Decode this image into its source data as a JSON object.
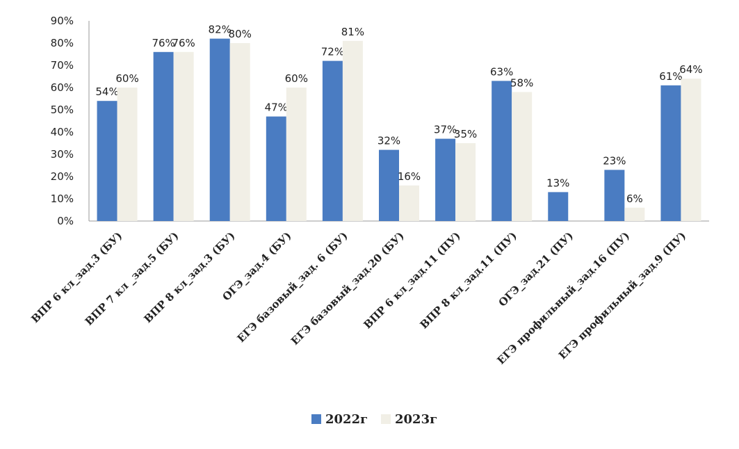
{
  "chart_data": {
    "type": "bar",
    "categories": [
      "ВПР 6 кл_зад.3 (БУ)",
      "ВПР 7 кл _зад.5 (БУ)",
      "ВПР 8 кл_зад.3 (БУ)",
      "ОГЭ_зад.4 (БУ)",
      "ЕГЭ базовый_зад. 6 (БУ)",
      "ЕГЭ базовый_зад.20 (БУ)",
      "ВПР 6 кл_зад.11 (ПУ)",
      "ВПР 8 кл_зад.11 (ПУ)",
      "ОГЭ_зад.21 (ПУ)",
      "ЕГЭ профильный_зад.16 (ПУ)",
      "ЕГЭ профильный_зад.9 (ПУ)"
    ],
    "series": [
      {
        "name": "2022г",
        "color": "#4a7cc2",
        "values": [
          54,
          76,
          82,
          47,
          72,
          32,
          37,
          63,
          13,
          23,
          61
        ],
        "labels": [
          "54%",
          "76%",
          "82%",
          "47%",
          "72%",
          "32%",
          "37%",
          "63%",
          "13%",
          "23%",
          "61%"
        ]
      },
      {
        "name": "2023г",
        "color": "#f1efe6",
        "values": [
          60,
          76,
          80,
          60,
          81,
          16,
          35,
          58,
          0,
          6,
          64
        ],
        "labels": [
          "60%",
          "76%",
          "80%",
          "60%",
          "81%",
          "16%",
          "35%",
          "58%",
          "",
          "6%",
          "64%"
        ]
      }
    ],
    "ylim": [
      0,
      90
    ],
    "yticks": [
      "0%",
      "10%",
      "20%",
      "30%",
      "40%",
      "50%",
      "60%",
      "70%",
      "80%",
      "90%"
    ],
    "grid": false,
    "legend_position": "bottom"
  }
}
